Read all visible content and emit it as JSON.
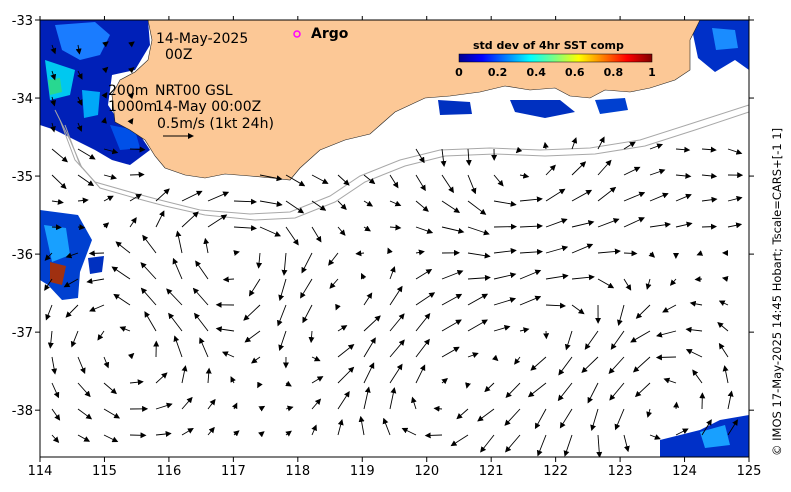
{
  "header": {
    "date_line1": "14-May-2025",
    "date_line2": "00Z",
    "legend_argo_label": "Argo",
    "depth_label_a": "200m",
    "depth_label_b": "1000m",
    "product_label": "NRT00 GSL",
    "product_time": "14-May 00:00Z",
    "scale_label": "0.5m/s (1kt 24h)"
  },
  "colorbar": {
    "title": "std dev of 4hr SST comp",
    "ticks": [
      "0",
      "0.2",
      "0.4",
      "0.6",
      "0.8",
      "1"
    ]
  },
  "axes": {
    "x_ticks": [
      "114",
      "115",
      "116",
      "117",
      "118",
      "119",
      "120",
      "121",
      "122",
      "123",
      "124",
      "125"
    ],
    "y_ticks": [
      "-33",
      "-34",
      "-35",
      "-36",
      "-37",
      "-38"
    ]
  },
  "credit": "© IMOS 17-May-2025 14:45 Hobart; Tscale=CARS+[-1 1]",
  "colors": {
    "land": "#fcc896",
    "sst_low": "#00008f",
    "sst_mid": "#00c0ff",
    "sst_high": "#ff2000",
    "argo_marker": "#ff00ff",
    "isobath": "#a8a8a8"
  },
  "chart_data": {
    "type": "vector-map",
    "xlim": [
      114,
      125
    ],
    "ylim": [
      -38.6,
      -33
    ],
    "xlabel": "",
    "ylabel": "",
    "reference_vector": {
      "speed_m_s": 0.5,
      "label": "0.5m/s (1kt 24h)"
    },
    "colorbar_range": [
      0,
      1
    ]
  }
}
